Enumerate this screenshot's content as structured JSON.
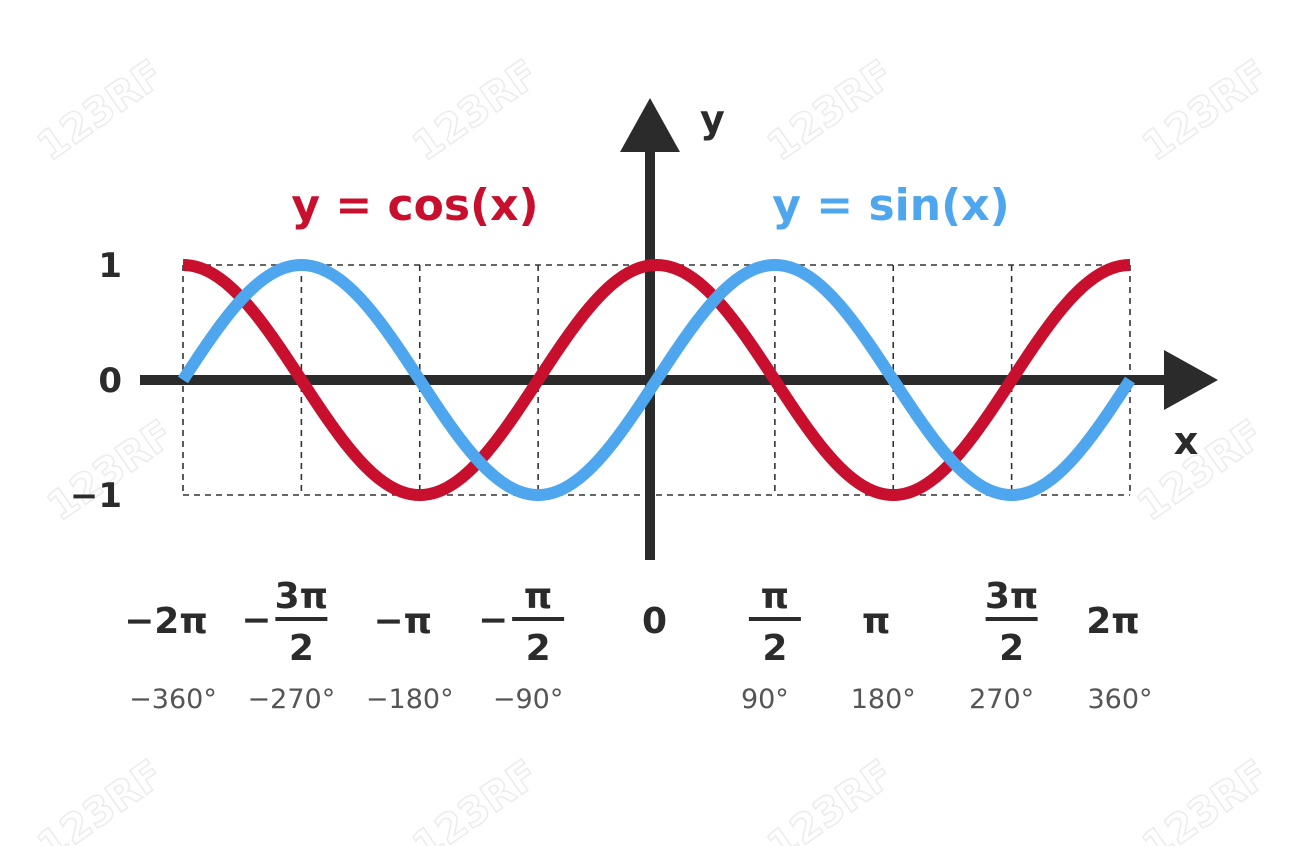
{
  "chart_data": {
    "type": "line",
    "title": "",
    "xlabel": "x",
    "ylabel": "y",
    "xlim": [
      -360,
      360
    ],
    "ylim": [
      -1,
      1
    ],
    "grid": true,
    "x_ticks": [
      {
        "value": -360,
        "label": "−2π",
        "sign": "",
        "num": "",
        "den": "",
        "degree": "−360°"
      },
      {
        "value": -270,
        "label": "",
        "sign": "−",
        "num": "3π",
        "den": "2",
        "degree": "−270°"
      },
      {
        "value": -180,
        "label": "−π",
        "sign": "",
        "num": "",
        "den": "",
        "degree": "−180°"
      },
      {
        "value": -90,
        "label": "",
        "sign": "−",
        "num": "π",
        "den": "2",
        "degree": "−90°"
      },
      {
        "value": 0,
        "label": "0",
        "sign": "",
        "num": "",
        "den": "",
        "degree": ""
      },
      {
        "value": 90,
        "label": "",
        "sign": "",
        "num": "π",
        "den": "2",
        "degree": "90°"
      },
      {
        "value": 180,
        "label": "π",
        "sign": "",
        "num": "",
        "den": "",
        "degree": "180°"
      },
      {
        "value": 270,
        "label": "",
        "sign": "",
        "num": "3π",
        "den": "2",
        "degree": "270°"
      },
      {
        "value": 360,
        "label": "2π",
        "sign": "",
        "num": "",
        "den": "",
        "degree": "360°"
      }
    ],
    "y_ticks": [
      {
        "value": 1,
        "label": "1"
      },
      {
        "value": 0,
        "label": "0"
      },
      {
        "value": -1,
        "label": "−1"
      }
    ],
    "series": [
      {
        "name": "y = cos(x)",
        "function": "cos",
        "color": "#c8102e"
      },
      {
        "name": "y = sin(x)",
        "function": "sin",
        "color": "#4da6ee"
      }
    ]
  },
  "watermark": {
    "text": "123RF"
  }
}
